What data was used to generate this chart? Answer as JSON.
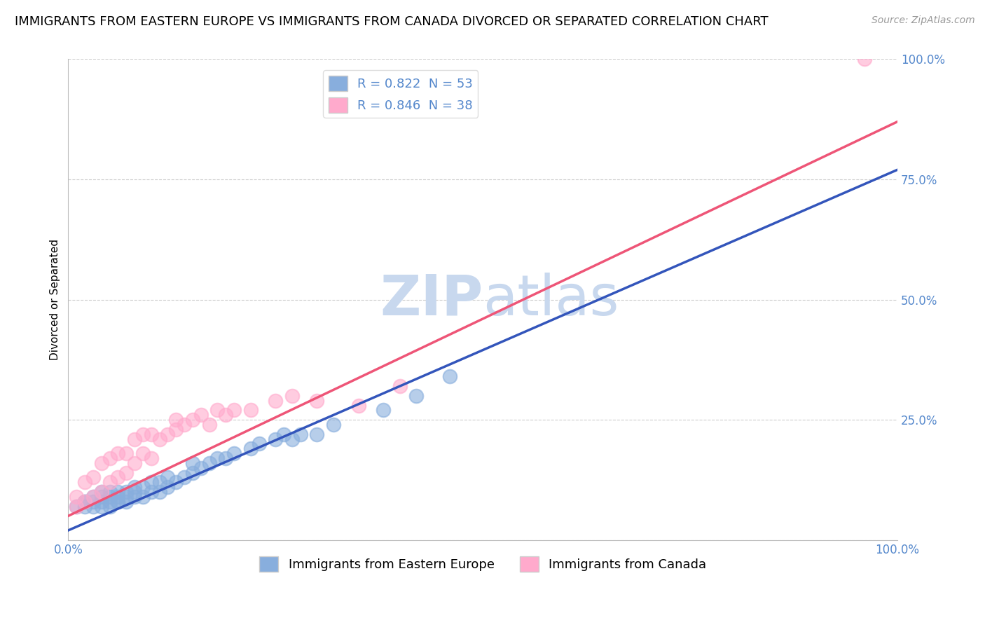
{
  "title": "IMMIGRANTS FROM EASTERN EUROPE VS IMMIGRANTS FROM CANADA DIVORCED OR SEPARATED CORRELATION CHART",
  "source": "Source: ZipAtlas.com",
  "ylabel": "Divorced or Separated",
  "x_label_blue": "Immigrants from Eastern Europe",
  "x_label_pink": "Immigrants from Canada",
  "xlim": [
    0.0,
    1.0
  ],
  "ylim": [
    0.0,
    1.0
  ],
  "xticks": [
    0.0,
    0.25,
    0.5,
    0.75,
    1.0
  ],
  "xticklabels": [
    "0.0%",
    "",
    "",
    "",
    "100.0%"
  ],
  "yticks": [
    0.0,
    0.25,
    0.5,
    0.75,
    1.0
  ],
  "yticklabels": [
    "",
    "25.0%",
    "50.0%",
    "75.0%",
    "100.0%"
  ],
  "R_blue": 0.822,
  "N_blue": 53,
  "R_pink": 0.846,
  "N_pink": 38,
  "blue_color": "#88AEDD",
  "pink_color": "#FFAACC",
  "line_blue_color": "#3355BB",
  "line_pink_color": "#EE5577",
  "text_color": "#5588CC",
  "watermark_color": "#C8D8EE",
  "title_fontsize": 13,
  "axis_label_fontsize": 11,
  "tick_fontsize": 12,
  "legend_fontsize": 13,
  "blue_scatter_x": [
    0.01,
    0.02,
    0.02,
    0.02,
    0.03,
    0.03,
    0.03,
    0.04,
    0.04,
    0.04,
    0.04,
    0.05,
    0.05,
    0.05,
    0.05,
    0.06,
    0.06,
    0.06,
    0.06,
    0.07,
    0.07,
    0.07,
    0.08,
    0.08,
    0.08,
    0.09,
    0.09,
    0.1,
    0.1,
    0.11,
    0.11,
    0.12,
    0.12,
    0.13,
    0.14,
    0.15,
    0.15,
    0.16,
    0.17,
    0.18,
    0.19,
    0.2,
    0.22,
    0.23,
    0.25,
    0.26,
    0.27,
    0.28,
    0.3,
    0.32,
    0.38,
    0.42,
    0.46
  ],
  "blue_scatter_y": [
    0.07,
    0.07,
    0.08,
    0.08,
    0.07,
    0.08,
    0.09,
    0.07,
    0.08,
    0.09,
    0.1,
    0.07,
    0.08,
    0.09,
    0.1,
    0.08,
    0.08,
    0.09,
    0.1,
    0.08,
    0.09,
    0.1,
    0.09,
    0.1,
    0.11,
    0.09,
    0.11,
    0.1,
    0.12,
    0.1,
    0.12,
    0.11,
    0.13,
    0.12,
    0.13,
    0.14,
    0.16,
    0.15,
    0.16,
    0.17,
    0.17,
    0.18,
    0.19,
    0.2,
    0.21,
    0.22,
    0.21,
    0.22,
    0.22,
    0.24,
    0.27,
    0.3,
    0.34
  ],
  "pink_scatter_x": [
    0.01,
    0.01,
    0.02,
    0.02,
    0.03,
    0.03,
    0.04,
    0.04,
    0.05,
    0.05,
    0.06,
    0.06,
    0.07,
    0.07,
    0.08,
    0.08,
    0.09,
    0.09,
    0.1,
    0.1,
    0.11,
    0.12,
    0.13,
    0.13,
    0.14,
    0.15,
    0.16,
    0.17,
    0.18,
    0.19,
    0.2,
    0.22,
    0.25,
    0.27,
    0.3,
    0.35,
    0.4,
    0.96
  ],
  "pink_scatter_y": [
    0.07,
    0.09,
    0.08,
    0.12,
    0.09,
    0.13,
    0.1,
    0.16,
    0.12,
    0.17,
    0.13,
    0.18,
    0.14,
    0.18,
    0.16,
    0.21,
    0.18,
    0.22,
    0.17,
    0.22,
    0.21,
    0.22,
    0.23,
    0.25,
    0.24,
    0.25,
    0.26,
    0.24,
    0.27,
    0.26,
    0.27,
    0.27,
    0.29,
    0.3,
    0.29,
    0.28,
    0.32,
    1.0
  ],
  "blue_line_x": [
    0.0,
    1.0
  ],
  "blue_line_y": [
    0.02,
    0.77
  ],
  "pink_line_x": [
    0.0,
    1.0
  ],
  "pink_line_y": [
    0.05,
    0.87
  ]
}
